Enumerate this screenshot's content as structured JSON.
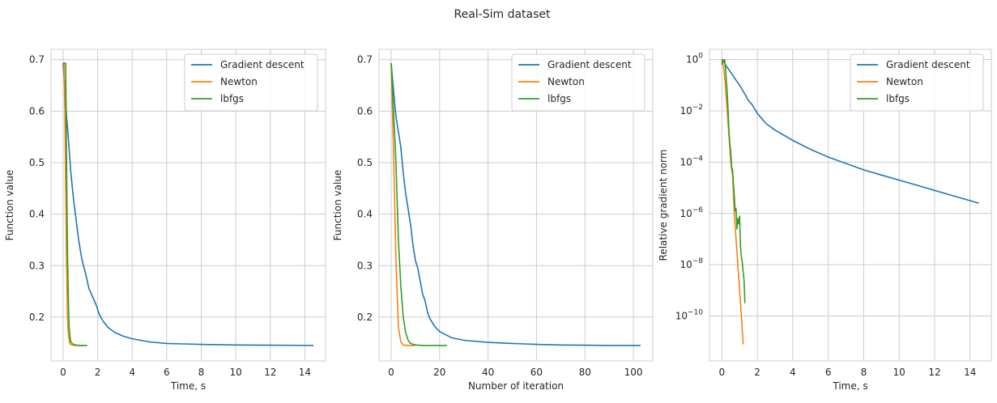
{
  "figure": {
    "title": "Real-Sim dataset",
    "colors": {
      "Gradient descent": "#1f77b4",
      "Newton": "#ff7f0e",
      "lbfgs": "#2ca02c",
      "grid": "#cccccc",
      "axes": "#cccccc"
    }
  },
  "chart_data": [
    {
      "type": "line",
      "xlabel": "Time, s",
      "ylabel": "Function value",
      "xlim": [
        -0.7,
        15.2
      ],
      "ylim": [
        0.115,
        0.72
      ],
      "yscale": "linear",
      "xticks": [
        0,
        2,
        4,
        6,
        8,
        10,
        12,
        14
      ],
      "yticks": [
        0.2,
        0.3,
        0.4,
        0.5,
        0.6,
        0.7
      ],
      "grid": true,
      "legend": "top-right",
      "series": [
        {
          "name": "Gradient descent",
          "x": [
            0.0,
            0.1,
            0.2,
            0.3,
            0.45,
            0.6,
            0.75,
            0.9,
            1.0,
            1.1,
            1.3,
            1.5,
            1.7,
            1.9,
            2.1,
            2.3,
            2.6,
            3.0,
            3.5,
            4.0,
            5.0,
            6.0,
            7.0,
            8.0,
            10.0,
            12.0,
            14.5
          ],
          "y": [
            0.693,
            0.645,
            0.59,
            0.55,
            0.48,
            0.43,
            0.39,
            0.35,
            0.33,
            0.31,
            0.285,
            0.255,
            0.24,
            0.225,
            0.205,
            0.193,
            0.18,
            0.17,
            0.163,
            0.158,
            0.152,
            0.149,
            0.148,
            0.147,
            0.146,
            0.1455,
            0.145
          ]
        },
        {
          "name": "Newton",
          "x": [
            0.0,
            0.05,
            0.1,
            0.15,
            0.2,
            0.25,
            0.3,
            0.35,
            0.4,
            0.5,
            0.7,
            0.9,
            1.2
          ],
          "y": [
            0.693,
            0.693,
            0.6,
            0.45,
            0.3,
            0.2,
            0.17,
            0.155,
            0.148,
            0.146,
            0.145,
            0.145,
            0.145
          ]
        },
        {
          "name": "lbfgs",
          "x": [
            0.0,
            0.15,
            0.2,
            0.25,
            0.3,
            0.35,
            0.4,
            0.45,
            0.55,
            0.7,
            1.0,
            1.4
          ],
          "y": [
            0.693,
            0.693,
            0.5,
            0.33,
            0.24,
            0.18,
            0.16,
            0.152,
            0.148,
            0.146,
            0.145,
            0.145
          ]
        }
      ]
    },
    {
      "type": "line",
      "xlabel": "Number of iteration",
      "ylabel": "Function value",
      "xlim": [
        -5,
        108
      ],
      "ylim": [
        0.115,
        0.72
      ],
      "yscale": "linear",
      "xticks": [
        0,
        20,
        40,
        60,
        80,
        100
      ],
      "yticks": [
        0.2,
        0.3,
        0.4,
        0.5,
        0.6,
        0.7
      ],
      "grid": true,
      "legend": "top-right",
      "series": [
        {
          "name": "Gradient descent",
          "x": [
            0,
            1,
            2,
            3,
            4,
            5,
            6,
            7,
            8,
            9,
            10,
            11,
            12,
            13,
            14,
            15,
            16,
            18,
            20,
            25,
            30,
            40,
            50,
            60,
            70,
            80,
            90,
            103
          ],
          "y": [
            0.693,
            0.64,
            0.59,
            0.56,
            0.53,
            0.48,
            0.44,
            0.41,
            0.38,
            0.34,
            0.31,
            0.295,
            0.27,
            0.245,
            0.232,
            0.21,
            0.197,
            0.182,
            0.172,
            0.16,
            0.155,
            0.151,
            0.149,
            0.147,
            0.146,
            0.1455,
            0.145,
            0.145
          ]
        },
        {
          "name": "Newton",
          "x": [
            0,
            1,
            2,
            3,
            4,
            5,
            7,
            10
          ],
          "y": [
            0.693,
            0.52,
            0.31,
            0.18,
            0.152,
            0.146,
            0.145,
            0.145
          ]
        },
        {
          "name": "lbfgs",
          "x": [
            0,
            1,
            2,
            3,
            4,
            5,
            6,
            7,
            8,
            10,
            13,
            17,
            23
          ],
          "y": [
            0.693,
            0.6,
            0.5,
            0.35,
            0.26,
            0.2,
            0.17,
            0.155,
            0.149,
            0.146,
            0.145,
            0.145,
            0.145
          ]
        }
      ]
    },
    {
      "type": "line",
      "xlabel": "Time, s",
      "ylabel": "Relative gradient norm",
      "xlim": [
        -0.7,
        15.2
      ],
      "ylim": [
        -11.75,
        0.4
      ],
      "yscale": "log",
      "xticks": [
        0,
        2,
        4,
        6,
        8,
        10,
        12,
        14
      ],
      "yticks": [
        0,
        -2,
        -4,
        -6,
        -8,
        -10
      ],
      "ytick_labels": [
        "10^0",
        "10^−2",
        "10^−4",
        "10^−6",
        "10^−8",
        "10^−10"
      ],
      "grid": true,
      "legend": "top-right",
      "series": [
        {
          "name": "Gradient descent",
          "x": [
            0.0,
            0.1,
            0.2,
            0.3,
            0.5,
            0.7,
            1.0,
            1.3,
            1.5,
            1.7,
            2.0,
            2.5,
            3.0,
            4.0,
            5.0,
            6.0,
            7.0,
            8.0,
            9.0,
            10.0,
            11.0,
            12.0,
            13.0,
            14.5
          ],
          "y": [
            0,
            -0.05,
            -0.2,
            -0.3,
            -0.5,
            -0.7,
            -1.0,
            -1.35,
            -1.6,
            -1.75,
            -2.1,
            -2.5,
            -2.75,
            -3.15,
            -3.5,
            -3.8,
            -4.05,
            -4.3,
            -4.5,
            -4.7,
            -4.9,
            -5.1,
            -5.3,
            -5.6
          ]
        },
        {
          "name": "Newton",
          "x": [
            0.0,
            0.1,
            0.2,
            0.3,
            0.4,
            0.5,
            0.55,
            0.6,
            0.7,
            0.8,
            0.9,
            1.0,
            1.1,
            1.2
          ],
          "y": [
            0,
            -0.3,
            -1.0,
            -2.0,
            -3.0,
            -4.0,
            -4.3,
            -4.5,
            -6.0,
            -7.0,
            -8.0,
            -9.0,
            -10.0,
            -11.1
          ]
        },
        {
          "name": "lbfgs",
          "x": [
            0.0,
            0.05,
            0.1,
            0.15,
            0.2,
            0.25,
            0.3,
            0.35,
            0.4,
            0.45,
            0.5,
            0.55,
            0.6,
            0.65,
            0.7,
            0.75,
            0.8,
            0.85,
            0.9,
            0.95,
            1.0,
            1.05,
            1.1,
            1.15,
            1.2,
            1.25,
            1.3
          ],
          "y": [
            -0.2,
            0.0,
            -0.1,
            0.0,
            -0.3,
            -0.8,
            -1.3,
            -2.0,
            -2.8,
            -3.3,
            -3.6,
            -4.2,
            -4.3,
            -4.8,
            -5.3,
            -5.9,
            -5.8,
            -6.6,
            -6.2,
            -6.4,
            -6.1,
            -7.3,
            -7.7,
            -7.9,
            -8.3,
            -8.6,
            -9.5
          ]
        }
      ]
    }
  ]
}
